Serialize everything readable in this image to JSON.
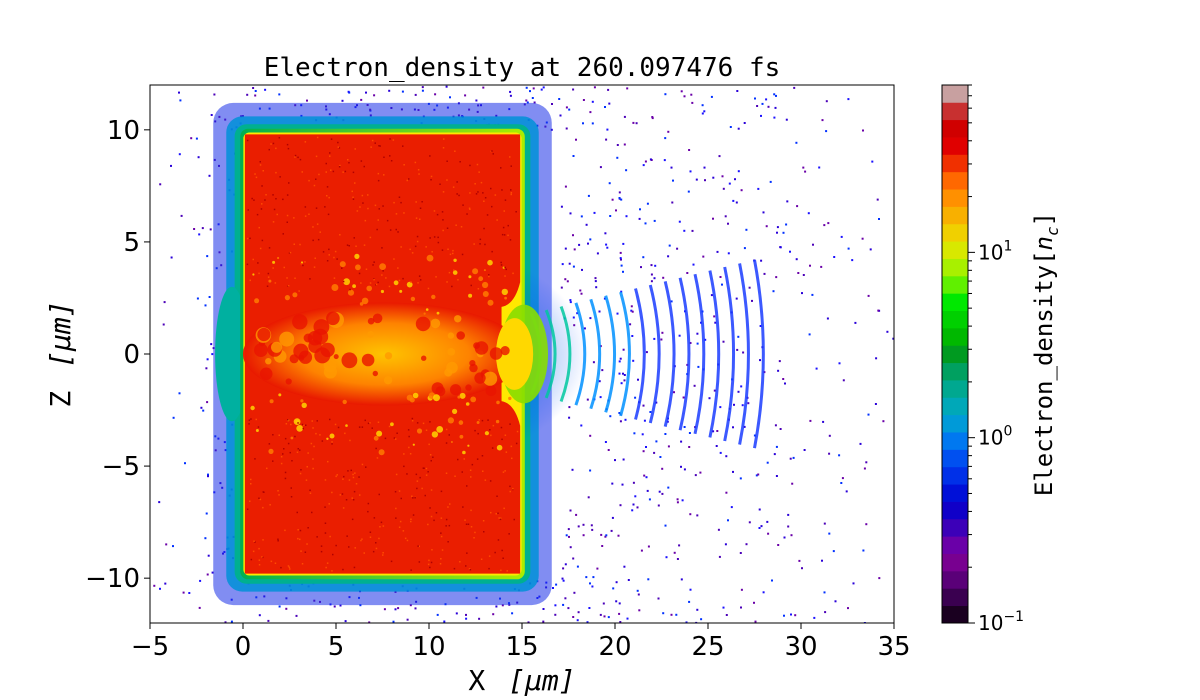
{
  "chart_data": {
    "type": "heatmap",
    "title": "Electron_density at 260.097476 fs",
    "xlabel_text": "X",
    "xlabel_unit": "[μm]",
    "ylabel_text": "Z",
    "ylabel_unit": "[μm]",
    "xlim": [
      -5,
      35
    ],
    "ylim": [
      -12,
      12
    ],
    "x_ticks": [
      -5,
      0,
      5,
      10,
      15,
      20,
      25,
      30,
      35
    ],
    "x_tick_labels": [
      "−5",
      "0",
      "5",
      "10",
      "15",
      "20",
      "25",
      "30",
      "35"
    ],
    "y_ticks": [
      -10,
      -5,
      0,
      5,
      10
    ],
    "y_tick_labels": [
      "−10",
      "−5",
      "0",
      "5",
      "10"
    ],
    "colorbar": {
      "label": "Electron_density[n_c]",
      "scale": "log",
      "range": [
        0.1,
        80
      ],
      "ticks": [
        0.1,
        1,
        10
      ],
      "tick_labels": [
        {
          "base": "10",
          "exp": "−1"
        },
        {
          "base": "10",
          "exp": "0"
        },
        {
          "base": "10",
          "exp": "1"
        }
      ],
      "colormap": "nipy_spectral"
    },
    "regions": {
      "target_slab": {
        "x": [
          0,
          15
        ],
        "z": [
          -10,
          10
        ],
        "density_nc": "≈50"
      },
      "channel": {
        "x": [
          0,
          15
        ],
        "z": [
          -2.5,
          2.5
        ],
        "density_nc": "10–30"
      },
      "wake": {
        "x": [
          15,
          28.5
        ],
        "z": [
          -4,
          4
        ],
        "density_nc": "0.2–3"
      },
      "halo": {
        "x": [
          -2,
          35
        ],
        "z": [
          -12,
          12
        ],
        "density_nc": "0.1–0.5"
      }
    }
  }
}
